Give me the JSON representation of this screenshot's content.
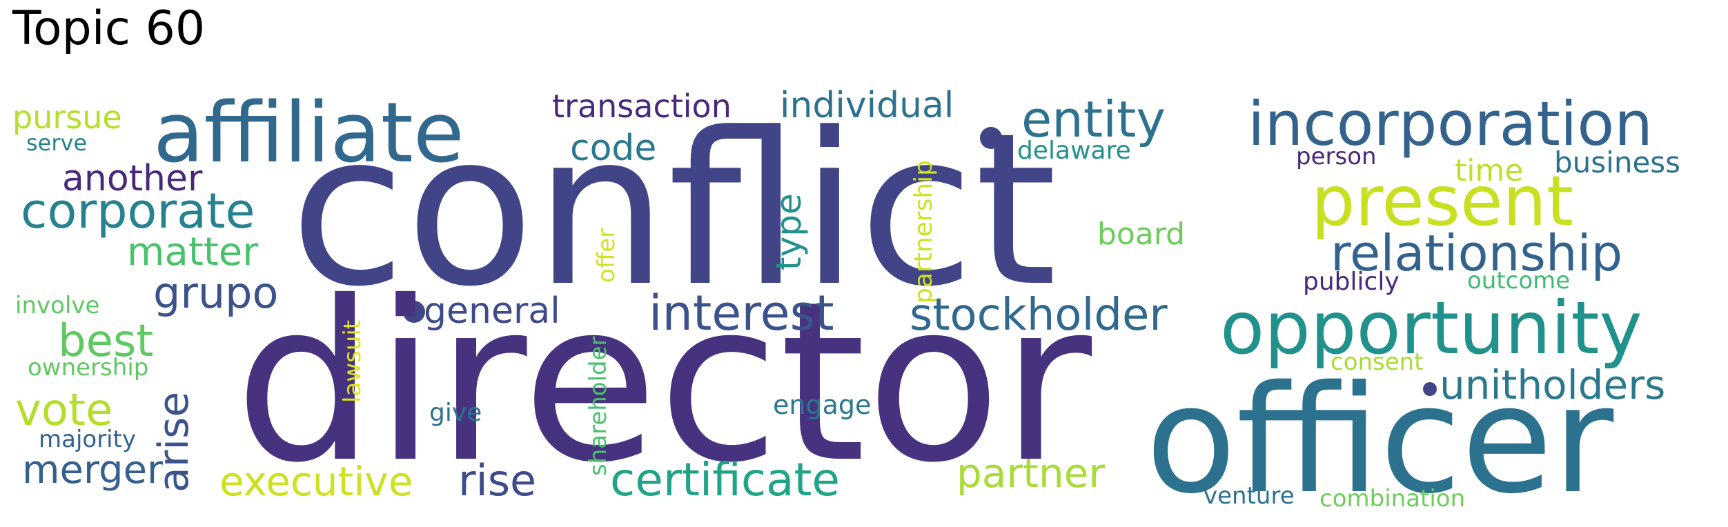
{
  "title": "Topic 60",
  "words": [
    {
      "text": "conflict",
      "color": "#414487",
      "weight": 1.0
    },
    {
      "text": "director",
      "color": "#46327e",
      "weight": 0.95
    },
    {
      "text": "officer",
      "color": "#2c728e",
      "weight": 0.72
    },
    {
      "text": "affiliate",
      "color": "#31688e",
      "weight": 0.45
    },
    {
      "text": "opportunity",
      "color": "#21918c",
      "weight": 0.45
    },
    {
      "text": "incorporation",
      "color": "#33638d",
      "weight": 0.4
    },
    {
      "text": "present",
      "color": "#c8e020",
      "weight": 0.4
    },
    {
      "text": "entity",
      "color": "#2c728e",
      "weight": 0.32
    },
    {
      "text": "relationship",
      "color": "#33638d",
      "weight": 0.32
    },
    {
      "text": "corporate",
      "color": "#26828e",
      "weight": 0.3
    },
    {
      "text": "interest",
      "color": "#3b528b",
      "weight": 0.3
    },
    {
      "text": "stockholder",
      "color": "#31688e",
      "weight": 0.28
    },
    {
      "text": "certificate",
      "color": "#20a486",
      "weight": 0.28
    },
    {
      "text": "unitholders",
      "color": "#2a788e",
      "weight": 0.26
    },
    {
      "text": "vote",
      "color": "#b5de2b",
      "weight": 0.28
    },
    {
      "text": "arise",
      "color": "#3b528b",
      "weight": 0.26
    },
    {
      "text": "best",
      "color": "#5ec962",
      "weight": 0.28
    },
    {
      "text": "grupo",
      "color": "#3b528b",
      "weight": 0.28
    },
    {
      "text": "executive",
      "color": "#cde11d",
      "weight": 0.26
    },
    {
      "text": "rise",
      "color": "#3e4a89",
      "weight": 0.26
    },
    {
      "text": "partner",
      "color": "#a8db34",
      "weight": 0.26
    },
    {
      "text": "matter",
      "color": "#4ac16d",
      "weight": 0.24
    },
    {
      "text": "merger",
      "color": "#355f8d",
      "weight": 0.24
    },
    {
      "text": "another",
      "color": "#482878",
      "weight": 0.22
    },
    {
      "text": "code",
      "color": "#2a788e",
      "weight": 0.22
    },
    {
      "text": "individual",
      "color": "#2c728e",
      "weight": 0.22
    },
    {
      "text": "transaction",
      "color": "#482878",
      "weight": 0.2
    },
    {
      "text": "type",
      "color": "#21918c",
      "weight": 0.22
    },
    {
      "text": "general",
      "color": "#3e4a89",
      "weight": 0.2
    },
    {
      "text": "pursue",
      "color": "#b5de2b",
      "weight": 0.2
    },
    {
      "text": "time",
      "color": "#bddf26",
      "weight": 0.2
    },
    {
      "text": "business",
      "color": "#2c728e",
      "weight": 0.18
    },
    {
      "text": "board",
      "color": "#6ccd5a",
      "weight": 0.2
    },
    {
      "text": "partnership",
      "color": "#cde11d",
      "weight": 0.14
    },
    {
      "text": "offer",
      "color": "#d2e21b",
      "weight": 0.14
    },
    {
      "text": "lawsuit",
      "color": "#e2e418",
      "weight": 0.14
    },
    {
      "text": "shareholder",
      "color": "#4ac16d",
      "weight": 0.14
    },
    {
      "text": "engage",
      "color": "#2a788e",
      "weight": 0.16
    },
    {
      "text": "give",
      "color": "#2c728e",
      "weight": 0.14
    },
    {
      "text": "serve",
      "color": "#26828e",
      "weight": 0.14
    },
    {
      "text": "involve",
      "color": "#5ec962",
      "weight": 0.14
    },
    {
      "text": "ownership",
      "color": "#5ec962",
      "weight": 0.14
    },
    {
      "text": "majority",
      "color": "#33638d",
      "weight": 0.14
    },
    {
      "text": "delaware",
      "color": "#21918c",
      "weight": 0.14
    },
    {
      "text": "person",
      "color": "#482878",
      "weight": 0.14
    },
    {
      "text": "publicly",
      "color": "#482878",
      "weight": 0.14
    },
    {
      "text": "outcome",
      "color": "#3fbc73",
      "weight": 0.14
    },
    {
      "text": "consent",
      "color": "#a8db34",
      "weight": 0.14
    },
    {
      "text": "venture",
      "color": "#2c728e",
      "weight": 0.14
    },
    {
      "text": "combination",
      "color": "#6ccd5a",
      "weight": 0.14
    }
  ]
}
